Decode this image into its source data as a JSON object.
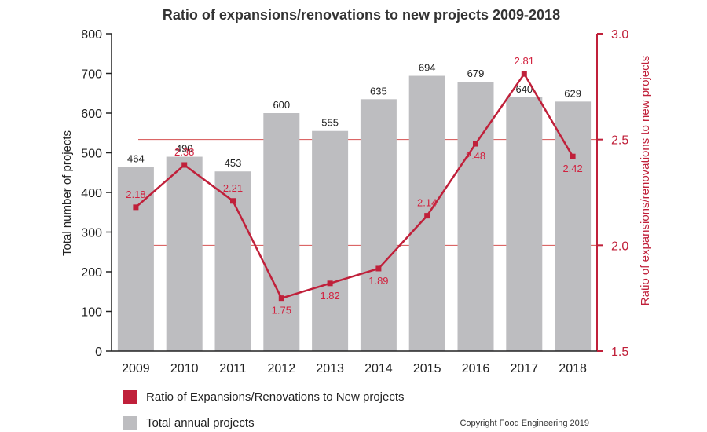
{
  "chart_data": {
    "type": "bar",
    "title": "Ratio of expansions/renovations to new projects 2009-2018",
    "categories": [
      "2009",
      "2010",
      "2011",
      "2012",
      "2013",
      "2014",
      "2015",
      "2016",
      "2017",
      "2018"
    ],
    "series": [
      {
        "name": "Total annual projects",
        "type": "bar",
        "axis": "left",
        "color": "#bdbdc0",
        "values": [
          464,
          490,
          453,
          600,
          555,
          635,
          694,
          679,
          640,
          629
        ]
      },
      {
        "name": "Ratio of Expansions/Renovations to New projects",
        "type": "line",
        "axis": "right",
        "color": "#c0203a",
        "values": [
          2.18,
          2.38,
          2.21,
          1.75,
          1.82,
          1.89,
          2.14,
          2.48,
          2.81,
          2.42
        ]
      }
    ],
    "ylabel": "Total number of projects",
    "ylim": [
      0,
      800
    ],
    "yticks": [
      "0",
      "100",
      "200",
      "300",
      "400",
      "500",
      "600",
      "700",
      "800"
    ],
    "y2label": "Ratio of expansions/renovations to new projects",
    "y2lim": [
      1.5,
      3.0
    ],
    "y2ticks": [
      "1.5",
      "2.0",
      "2.5",
      "3.0"
    ],
    "y2_reference_lines": [
      2.0,
      2.5
    ],
    "legend_placement": "bottom-left",
    "copyright": "Copyright Food Engineering 2019"
  }
}
